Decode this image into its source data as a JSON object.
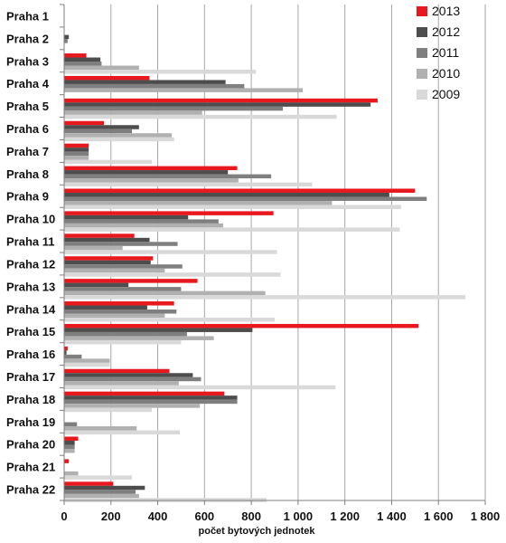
{
  "chart_data": {
    "type": "bar",
    "orientation": "horizontal",
    "categories": [
      "Praha 1",
      "Praha 2",
      "Praha 3",
      "Praha 4",
      "Praha 5",
      "Praha 6",
      "Praha 7",
      "Praha 8",
      "Praha 9",
      "Praha 10",
      "Praha 11",
      "Praha 12",
      "Praha 13",
      "Praha 14",
      "Praha 15",
      "Praha 16",
      "Praha 17",
      "Praha 18",
      "Praha 19",
      "Praha 20",
      "Praha 21",
      "Praha 22"
    ],
    "series": [
      {
        "name": "2013",
        "color": "#e8191e",
        "values": [
          0,
          0,
          95,
          365,
          1340,
          170,
          105,
          740,
          1500,
          895,
          300,
          380,
          570,
          470,
          1515,
          15,
          450,
          685,
          0,
          60,
          20,
          210
        ]
      },
      {
        "name": "2012",
        "color": "#4d4d4d",
        "values": [
          0,
          20,
          155,
          690,
          1310,
          320,
          105,
          700,
          1390,
          530,
          365,
          370,
          275,
          355,
          805,
          10,
          550,
          740,
          0,
          45,
          0,
          345
        ]
      },
      {
        "name": "2011",
        "color": "#7f7f7f",
        "values": [
          0,
          15,
          160,
          770,
          935,
          290,
          105,
          885,
          1550,
          660,
          485,
          505,
          500,
          480,
          525,
          75,
          585,
          740,
          55,
          45,
          0,
          305
        ]
      },
      {
        "name": "2010",
        "color": "#b0b0b0",
        "values": [
          0,
          0,
          320,
          1020,
          590,
          460,
          105,
          745,
          1145,
          680,
          250,
          430,
          860,
          430,
          640,
          195,
          490,
          580,
          310,
          45,
          60,
          320
        ]
      },
      {
        "name": "2009",
        "color": "#d9d9d9",
        "values": [
          0,
          0,
          820,
          0,
          1165,
          470,
          375,
          1060,
          1440,
          1435,
          910,
          925,
          1715,
          900,
          500,
          195,
          1160,
          375,
          495,
          0,
          290,
          865
        ]
      }
    ],
    "xlabel": "počet bytových jednotek",
    "xlim": [
      0,
      1800
    ],
    "xticks": [
      0,
      200,
      400,
      600,
      800,
      1000,
      1200,
      1400,
      1600,
      1800
    ],
    "xtick_labels": [
      "0",
      "200",
      "400",
      "600",
      "800",
      "1 000",
      "1 200",
      "1 400",
      "1 600",
      "1 800"
    ],
    "grid": true,
    "legend": "top-right"
  }
}
